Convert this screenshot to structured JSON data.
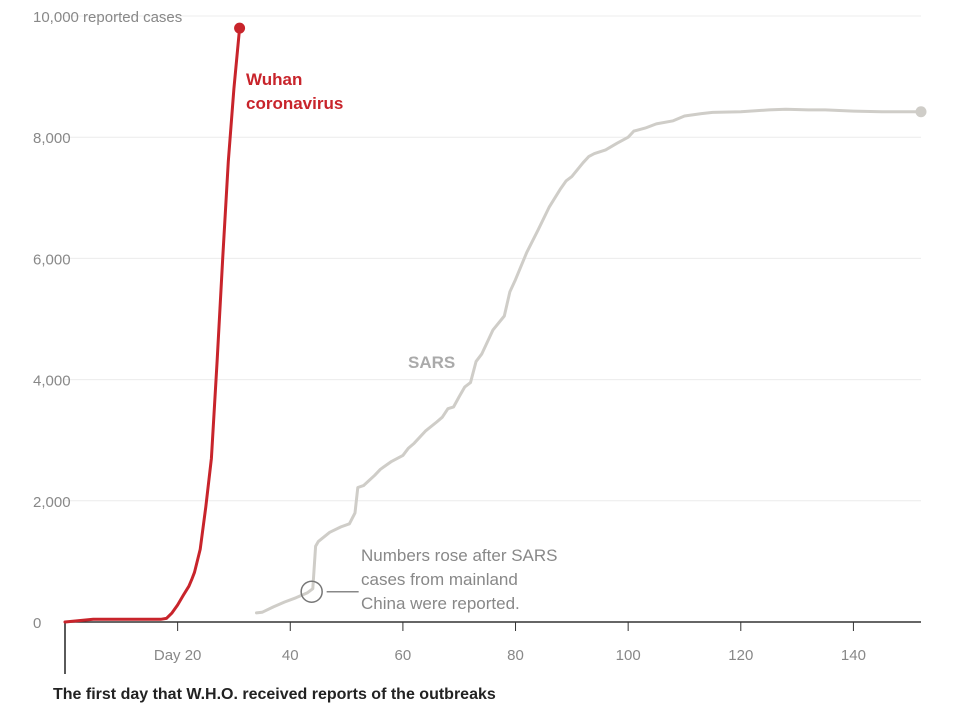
{
  "chart_data": {
    "type": "line",
    "title": "",
    "xlabel": "",
    "ylabel": "reported cases",
    "xlim": [
      0,
      152
    ],
    "ylim": [
      0,
      10000
    ],
    "grid": true,
    "x_ticks": [
      {
        "value": 20,
        "label": "Day 20"
      },
      {
        "value": 40,
        "label": "40"
      },
      {
        "value": 60,
        "label": "60"
      },
      {
        "value": 80,
        "label": "80"
      },
      {
        "value": 100,
        "label": "100"
      },
      {
        "value": 120,
        "label": "120"
      },
      {
        "value": 140,
        "label": "140"
      }
    ],
    "y_ticks": [
      {
        "value": 0,
        "label": "0"
      },
      {
        "value": 2000,
        "label": "2,000"
      },
      {
        "value": 4000,
        "label": "4,000"
      },
      {
        "value": 6000,
        "label": "6,000"
      },
      {
        "value": 8000,
        "label": "8,000"
      },
      {
        "value": 10000,
        "label": "10,000 reported cases"
      }
    ],
    "series": [
      {
        "name": "SARS",
        "label": "SARS",
        "color": "#cfcdc8",
        "label_color": "#aaaaaa",
        "x": [
          34,
          35,
          37,
          39,
          41,
          43,
          44,
          44.5,
          45,
          47,
          49,
          50.5,
          51.5,
          52,
          53,
          55,
          56,
          58,
          60,
          61,
          62,
          64,
          66,
          67,
          68,
          69,
          70,
          71,
          72,
          73,
          74,
          76,
          78,
          79,
          80,
          82,
          84,
          86,
          88,
          89,
          90,
          92,
          93,
          94,
          96,
          98,
          100,
          101,
          103,
          105,
          108,
          110,
          113,
          115,
          120,
          125,
          128,
          132,
          135,
          140,
          145,
          150,
          152
        ],
        "values": [
          150,
          160,
          250,
          330,
          400,
          480,
          550,
          1250,
          1330,
          1480,
          1570,
          1620,
          1800,
          2220,
          2250,
          2420,
          2520,
          2650,
          2750,
          2870,
          2950,
          3150,
          3300,
          3380,
          3520,
          3550,
          3720,
          3880,
          3950,
          4300,
          4420,
          4820,
          5050,
          5450,
          5650,
          6100,
          6470,
          6850,
          7150,
          7280,
          7350,
          7580,
          7680,
          7730,
          7790,
          7900,
          8000,
          8100,
          8150,
          8220,
          8270,
          8350,
          8390,
          8410,
          8420,
          8450,
          8460,
          8450,
          8450,
          8430,
          8420,
          8420,
          8420
        ]
      },
      {
        "name": "Wuhan coronavirus",
        "label_lines": [
          "Wuhan",
          "coronavirus"
        ],
        "color": "#c8242b",
        "label_color": "#c8242b",
        "x": [
          0,
          5,
          10,
          15,
          17,
          18,
          19,
          20,
          21,
          22,
          22.5,
          23,
          24,
          25,
          26,
          27,
          28,
          29,
          30,
          31
        ],
        "values": [
          0,
          45,
          45,
          45,
          45,
          60,
          150,
          280,
          440,
          590,
          700,
          820,
          1200,
          1900,
          2700,
          4300,
          6000,
          7600,
          8800,
          9800
        ]
      }
    ],
    "annotations": [
      {
        "target_x": 43.8,
        "target_y": 500,
        "lines": [
          "Numbers rose after SARS",
          "cases from mainland",
          "China were reported."
        ]
      }
    ],
    "footnote": "The first day that W.H.O. received reports of the outbreaks"
  }
}
